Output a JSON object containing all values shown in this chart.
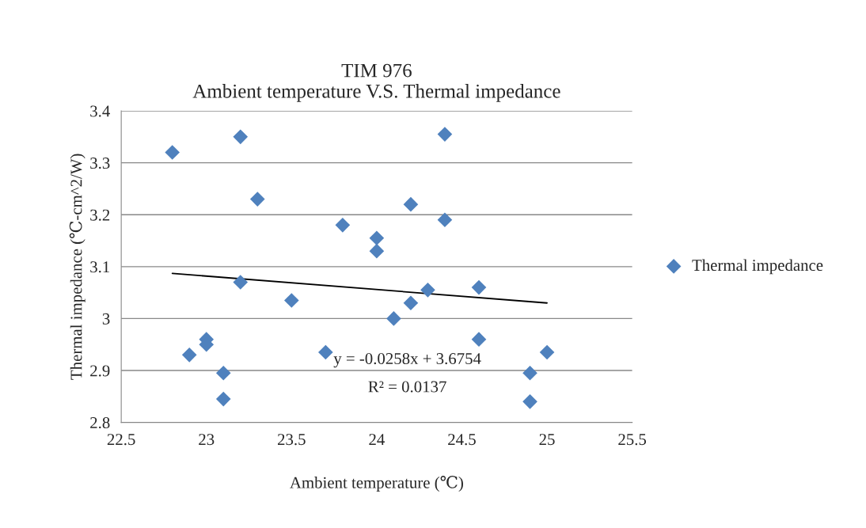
{
  "chart_data": {
    "type": "scatter",
    "title": "TIM 976\nAmbient temperature V.S. Thermal impedance",
    "xlabel": "Ambient temperature (℃)",
    "ylabel": "Thermal impedance (℃-cm^2/W)",
    "series": [
      {
        "name": "Thermal impedance",
        "color": "#4f81bd",
        "marker": "diamond",
        "x": [
          22.8,
          23.2,
          23.3,
          24.4,
          24.2,
          24.4,
          23.8,
          24.0,
          24.0,
          23.2,
          23.5,
          24.3,
          24.6,
          24.2,
          24.1,
          23.0,
          23.0,
          22.9,
          23.1,
          23.1,
          23.7,
          24.6,
          24.9,
          24.9,
          25.0
        ],
        "values": [
          3.32,
          3.35,
          3.23,
          3.355,
          3.22,
          3.19,
          3.18,
          3.155,
          3.13,
          3.07,
          3.035,
          3.055,
          3.06,
          3.03,
          3.0,
          2.96,
          2.95,
          2.93,
          2.895,
          2.845,
          2.935,
          2.96,
          2.895,
          2.84,
          2.935
        ]
      },
      {
        "type": "line",
        "color": "#000000",
        "x": [
          22.8,
          25.0
        ],
        "values": [
          3.087,
          3.03
        ]
      }
    ],
    "annotations": [
      "y = -0.0258x + 3.6754",
      "R² = 0.0137"
    ],
    "xlim": [
      22.5,
      25.5
    ],
    "xticks": [
      22.5,
      23,
      23.5,
      24,
      24.5,
      25,
      25.5
    ],
    "ylim": [
      2.8,
      3.4
    ],
    "yticks": [
      2.8,
      2.9,
      3,
      3.1,
      3.2,
      3.3,
      3.4
    ],
    "grid": "y",
    "legend": "right"
  }
}
